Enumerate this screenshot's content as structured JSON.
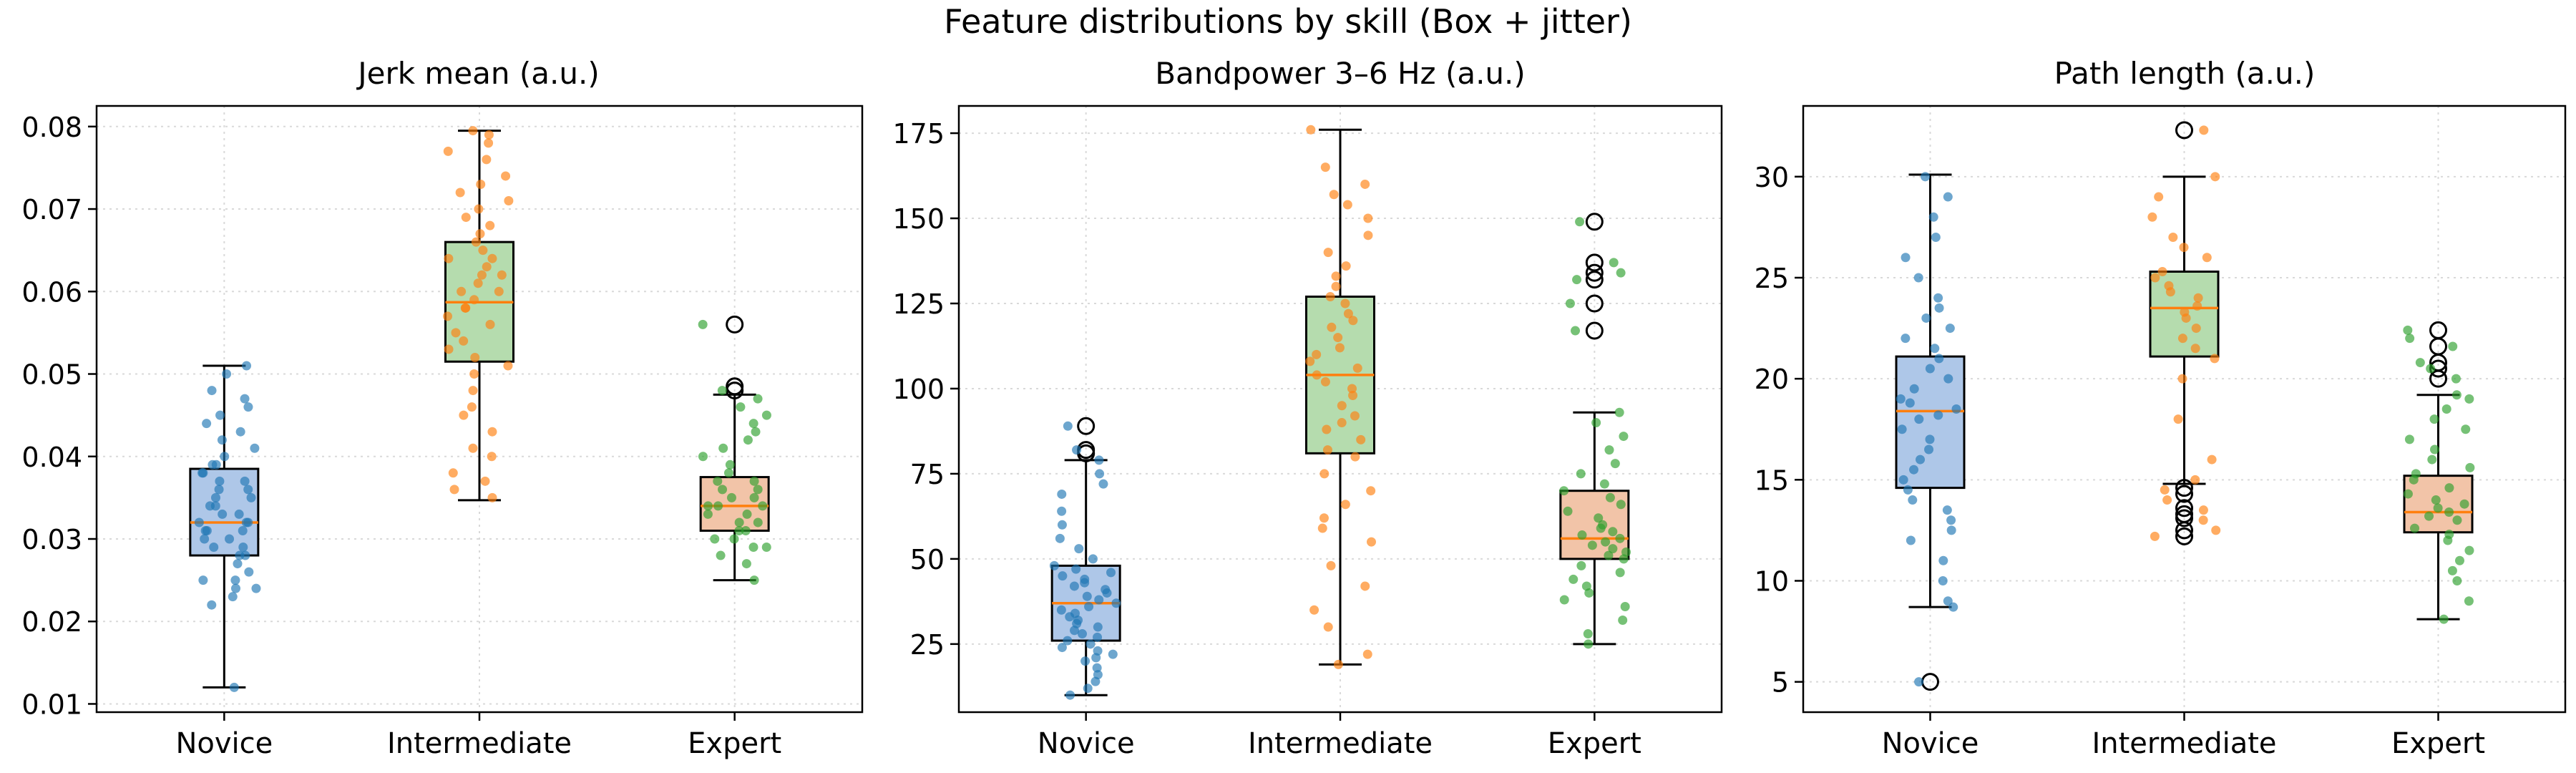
{
  "figure": {
    "title": "Feature distributions by skill (Box + jitter)"
  },
  "colors": {
    "Novice": "#1f77b4",
    "Intermediate": "#ff7f0e",
    "Expert": "#2ca02c",
    "boxfill": {
      "Novice": "#aec7e8",
      "Intermediate": "#b5dcae",
      "Expert": "#f2c4a8"
    },
    "median": "#ff7f0e"
  },
  "chart_data": [
    {
      "type": "box",
      "title": "Jerk mean (a.u.)",
      "categories": [
        "Novice",
        "Intermediate",
        "Expert"
      ],
      "ylim": [
        0.009,
        0.0825
      ],
      "yticks": [
        0.01,
        0.02,
        0.03,
        0.04,
        0.05,
        0.06,
        0.07,
        0.08
      ],
      "ytick_labels": [
        "0.01",
        "0.02",
        "0.03",
        "0.04",
        "0.05",
        "0.06",
        "0.07",
        "0.08"
      ],
      "grid": true,
      "boxes": [
        {
          "name": "Novice",
          "whisker_low": 0.012,
          "q1": 0.028,
          "median": 0.032,
          "q3": 0.0385,
          "whisker_high": 0.051,
          "outliers": [],
          "points": [
            0.012,
            0.022,
            0.023,
            0.024,
            0.024,
            0.025,
            0.025,
            0.026,
            0.027,
            0.028,
            0.028,
            0.029,
            0.029,
            0.03,
            0.03,
            0.031,
            0.031,
            0.031,
            0.032,
            0.032,
            0.032,
            0.033,
            0.033,
            0.034,
            0.034,
            0.035,
            0.035,
            0.036,
            0.036,
            0.037,
            0.037,
            0.038,
            0.038,
            0.039,
            0.039,
            0.04,
            0.041,
            0.042,
            0.043,
            0.044,
            0.045,
            0.046,
            0.047,
            0.048,
            0.05,
            0.051
          ]
        },
        {
          "name": "Intermediate",
          "whisker_low": 0.0347,
          "q1": 0.0515,
          "median": 0.0587,
          "q3": 0.066,
          "whisker_high": 0.0795,
          "outliers": [],
          "points": [
            0.035,
            0.036,
            0.037,
            0.038,
            0.04,
            0.041,
            0.043,
            0.045,
            0.046,
            0.048,
            0.05,
            0.051,
            0.052,
            0.053,
            0.054,
            0.055,
            0.056,
            0.057,
            0.058,
            0.058,
            0.059,
            0.06,
            0.06,
            0.061,
            0.062,
            0.062,
            0.063,
            0.064,
            0.064,
            0.065,
            0.066,
            0.067,
            0.068,
            0.069,
            0.07,
            0.071,
            0.072,
            0.073,
            0.074,
            0.076,
            0.077,
            0.078,
            0.079,
            0.0795
          ]
        },
        {
          "name": "Expert",
          "whisker_low": 0.025,
          "q1": 0.031,
          "median": 0.034,
          "q3": 0.0375,
          "whisker_high": 0.0475,
          "outliers": [
            0.056,
            0.0485,
            0.048
          ],
          "points": [
            0.025,
            0.027,
            0.028,
            0.029,
            0.029,
            0.03,
            0.03,
            0.031,
            0.031,
            0.032,
            0.032,
            0.033,
            0.033,
            0.034,
            0.034,
            0.034,
            0.035,
            0.035,
            0.036,
            0.036,
            0.037,
            0.037,
            0.038,
            0.039,
            0.04,
            0.041,
            0.042,
            0.043,
            0.044,
            0.045,
            0.046,
            0.047,
            0.048,
            0.056
          ]
        }
      ]
    },
    {
      "type": "box",
      "title": "Bandpower 3–6 Hz (a.u.)",
      "categories": [
        "Novice",
        "Intermediate",
        "Expert"
      ],
      "ylim": [
        5,
        183
      ],
      "yticks": [
        25,
        50,
        75,
        100,
        125,
        150,
        175
      ],
      "ytick_labels": [
        "25",
        "50",
        "75",
        "100",
        "125",
        "150",
        "175"
      ],
      "grid": true,
      "boxes": [
        {
          "name": "Novice",
          "whisker_low": 10,
          "q1": 26,
          "median": 37,
          "q3": 48,
          "whisker_high": 79,
          "outliers": [
            89,
            82,
            81
          ],
          "points": [
            10,
            12,
            14,
            16,
            18,
            20,
            21,
            22,
            23,
            24,
            25,
            26,
            27,
            28,
            29,
            30,
            31,
            32,
            33,
            34,
            35,
            36,
            37,
            38,
            39,
            40,
            41,
            42,
            43,
            44,
            45,
            46,
            47,
            48,
            50,
            53,
            56,
            60,
            64,
            69,
            72,
            75,
            79,
            82,
            89
          ]
        },
        {
          "name": "Intermediate",
          "whisker_low": 19,
          "q1": 81,
          "median": 104,
          "q3": 127,
          "whisker_high": 176,
          "outliers": [],
          "points": [
            19,
            22,
            30,
            35,
            42,
            48,
            55,
            59,
            62,
            66,
            70,
            75,
            80,
            82,
            85,
            88,
            90,
            92,
            95,
            98,
            100,
            102,
            104,
            106,
            108,
            110,
            112,
            115,
            118,
            120,
            122,
            125,
            127,
            130,
            133,
            136,
            140,
            145,
            150,
            154,
            157,
            160,
            165,
            176
          ]
        },
        {
          "name": "Expert",
          "whisker_low": 25,
          "q1": 50,
          "median": 56,
          "q3": 70,
          "whisker_high": 93,
          "outliers": [
            149,
            137,
            134,
            132,
            125,
            117
          ],
          "points": [
            25,
            28,
            32,
            36,
            38,
            40,
            42,
            44,
            46,
            48,
            50,
            51,
            52,
            53,
            54,
            55,
            56,
            57,
            58,
            59,
            60,
            62,
            64,
            66,
            68,
            70,
            72,
            75,
            78,
            82,
            86,
            90,
            93,
            117,
            125,
            132,
            134,
            137,
            149
          ]
        }
      ]
    },
    {
      "type": "box",
      "title": "Path length (a.u.)",
      "categories": [
        "Novice",
        "Intermediate",
        "Expert"
      ],
      "ylim": [
        3.5,
        33.5
      ],
      "yticks": [
        5,
        10,
        15,
        20,
        25,
        30
      ],
      "ytick_labels": [
        "5",
        "10",
        "15",
        "20",
        "25",
        "30"
      ],
      "grid": true,
      "boxes": [
        {
          "name": "Novice",
          "whisker_low": 8.7,
          "q1": 14.6,
          "median": 18.4,
          "q3": 21.1,
          "whisker_high": 30.1,
          "outliers": [
            5
          ],
          "points": [
            5,
            8.7,
            9,
            10,
            11,
            12,
            12.5,
            13,
            13.5,
            14,
            14.5,
            15,
            15.5,
            16,
            16.5,
            17,
            17.5,
            18,
            18.2,
            18.5,
            18.8,
            19,
            19.5,
            20,
            20.5,
            21,
            21.5,
            22,
            22.5,
            23,
            23.5,
            24,
            25,
            26,
            27,
            28,
            29,
            30
          ]
        },
        {
          "name": "Intermediate",
          "whisker_low": 14.8,
          "q1": 21.1,
          "median": 23.5,
          "q3": 25.3,
          "whisker_high": 30,
          "outliers": [
            32.3,
            14.6,
            14.3,
            13.6,
            13.3,
            13.1,
            12.5,
            12.2
          ],
          "points": [
            12.2,
            12.5,
            13,
            13.5,
            14,
            14.5,
            15,
            16,
            18,
            20,
            21,
            21.5,
            22,
            22.5,
            23,
            23.3,
            23.6,
            24,
            24.3,
            24.6,
            25,
            25.3,
            26,
            26.5,
            27,
            28,
            29,
            30,
            32.3
          ]
        },
        {
          "name": "Expert",
          "whisker_low": 8.1,
          "q1": 12.4,
          "median": 13.4,
          "q3": 15.2,
          "whisker_high": 19.2,
          "outliers": [
            22.4,
            21.6,
            20.8,
            20.5,
            20
          ],
          "points": [
            8.1,
            9,
            10,
            10.5,
            11,
            11.5,
            12,
            12.3,
            12.6,
            13,
            13.2,
            13.4,
            13.6,
            13.8,
            14,
            14.3,
            14.6,
            15,
            15.3,
            15.6,
            16,
            16.5,
            17,
            17.5,
            18,
            18.5,
            19,
            19.2,
            20,
            20.5,
            20.8,
            21.6,
            22,
            22.4
          ]
        }
      ]
    }
  ]
}
